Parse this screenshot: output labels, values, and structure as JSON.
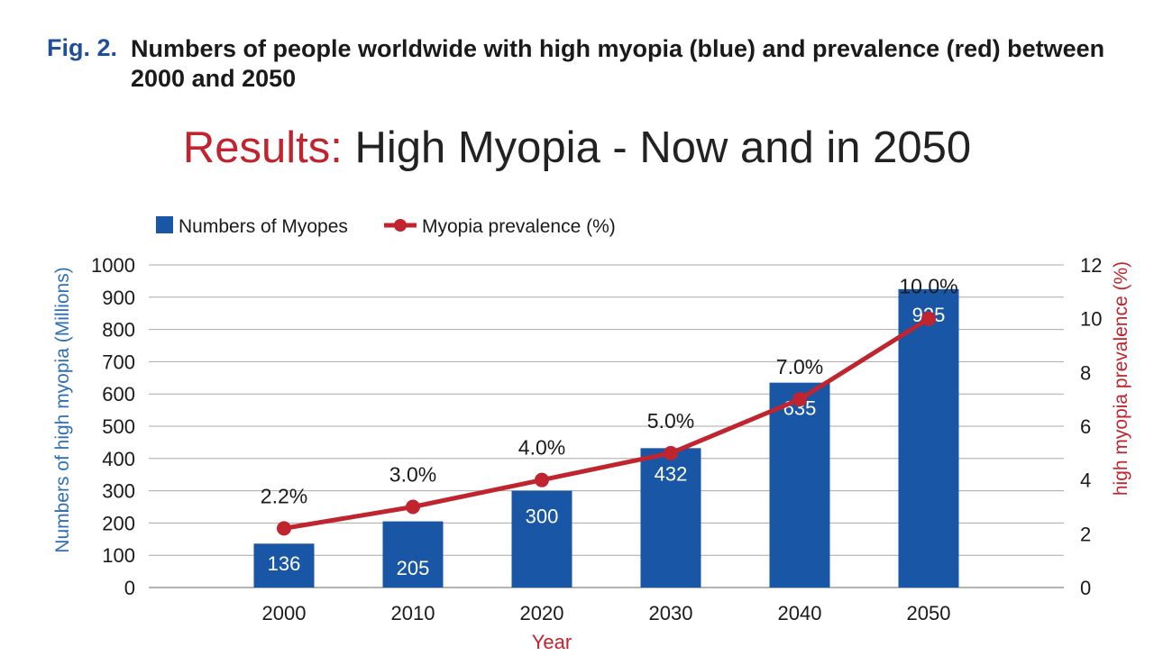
{
  "caption": {
    "number": "Fig. 2.",
    "text": "Numbers of people worldwide with high myopia (blue) and prevalence (red) between 2000 and 2050"
  },
  "title": {
    "accent": "Results:",
    "rest": " High Myopia - Now and in 2050",
    "accent_color": "#c0242e"
  },
  "chart_data": {
    "type": "bar",
    "categories": [
      "2000",
      "2010",
      "2020",
      "2030",
      "2040",
      "2050"
    ],
    "series": [
      {
        "name": "Numbers of Myopes",
        "kind": "bar",
        "axis": "left",
        "color": "#1957a6",
        "values": [
          136,
          205,
          300,
          432,
          635,
          925
        ],
        "data_labels": [
          "136",
          "205",
          "300",
          "432",
          "635",
          "925"
        ]
      },
      {
        "name": "Myopia prevalence (%)",
        "kind": "line",
        "axis": "right",
        "color": "#c0242e",
        "values": [
          2.2,
          3.0,
          4.0,
          5.0,
          7.0,
          10.0
        ],
        "data_labels": [
          "2.2%",
          "3.0%",
          "4.0%",
          "5.0%",
          "7.0%",
          "10.0%"
        ]
      }
    ],
    "xlabel": "Year",
    "ylabel_left": "Numbers of  high myopia (Millions)",
    "ylabel_right": "high myopia prevalence (%)",
    "ylim_left": [
      0,
      1000
    ],
    "ylim_right": [
      0,
      12
    ],
    "yticks_left": [
      "0",
      "100",
      "200",
      "300",
      "400",
      "500",
      "600",
      "700",
      "800",
      "900",
      "1000"
    ],
    "yticks_right": [
      "0",
      "2",
      "4",
      "6",
      "8",
      "10",
      "12"
    ],
    "grid": true,
    "legend_position": "top-left",
    "xlabel_color": "#c0242e",
    "ylabel_left_color": "#2f6fb6",
    "ylabel_right_color": "#c0242e"
  }
}
